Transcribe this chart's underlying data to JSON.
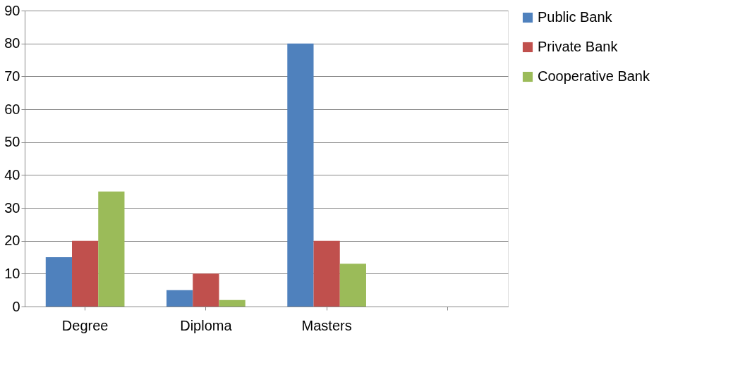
{
  "chart_data": {
    "type": "bar",
    "categories": [
      "Degree",
      "Diploma",
      "Masters",
      null
    ],
    "series": [
      {
        "name": "Public Bank",
        "color": "#4f81bd",
        "values": [
          15,
          5,
          80,
          null
        ]
      },
      {
        "name": "Private Bank",
        "color": "#c0504d",
        "values": [
          20,
          10,
          20,
          null
        ]
      },
      {
        "name": "Cooperative Bank",
        "color": "#9bbb59",
        "values": [
          35,
          2,
          13,
          null
        ]
      }
    ],
    "ylim": [
      0,
      90
    ],
    "yticks": [
      0,
      10,
      20,
      30,
      40,
      50,
      60,
      70,
      80,
      90
    ],
    "grid": "y",
    "legend": "right"
  }
}
